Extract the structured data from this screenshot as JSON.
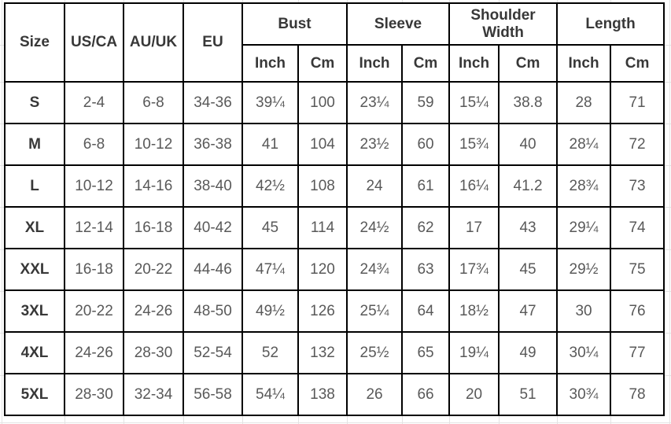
{
  "chart_data": {
    "type": "table",
    "title": "",
    "header": {
      "simple": [
        "Size",
        "US/CA",
        "AU/UK",
        "EU"
      ],
      "groups": [
        "Bust",
        "Sleeve",
        "Shoulder Width",
        "Length"
      ],
      "sub": [
        "Inch",
        "Cm",
        "Inch",
        "Cm",
        "Inch",
        "Cm",
        "Inch",
        "Cm"
      ]
    },
    "columns": [
      "Size",
      "US/CA",
      "AU/UK",
      "EU",
      "Bust Inch",
      "Bust Cm",
      "Sleeve Inch",
      "Sleeve Cm",
      "Shoulder Width Inch",
      "Shoulder Width Cm",
      "Length Inch",
      "Length Cm"
    ],
    "rows": [
      [
        "S",
        "2-4",
        "6-8",
        "34-36",
        "39¼",
        "100",
        "23¼",
        "59",
        "15¼",
        "38.8",
        "28",
        "71"
      ],
      [
        "M",
        "6-8",
        "10-12",
        "36-38",
        "41",
        "104",
        "23½",
        "60",
        "15¾",
        "40",
        "28¼",
        "72"
      ],
      [
        "L",
        "10-12",
        "14-16",
        "38-40",
        "42½",
        "108",
        "24",
        "61",
        "16¼",
        "41.2",
        "28¾",
        "73"
      ],
      [
        "XL",
        "12-14",
        "16-18",
        "40-42",
        "45",
        "114",
        "24½",
        "62",
        "17",
        "43",
        "29¼",
        "74"
      ],
      [
        "XXL",
        "16-18",
        "20-22",
        "44-46",
        "47¼",
        "120",
        "24¾",
        "63",
        "17¾",
        "45",
        "29½",
        "75"
      ],
      [
        "3XL",
        "20-22",
        "24-26",
        "48-50",
        "49½",
        "126",
        "25¼",
        "64",
        "18½",
        "47",
        "30",
        "76"
      ],
      [
        "4XL",
        "24-26",
        "28-30",
        "52-54",
        "52",
        "132",
        "25½",
        "65",
        "19¼",
        "49",
        "30¼",
        "77"
      ],
      [
        "5XL",
        "28-30",
        "32-34",
        "56-58",
        "54¼",
        "138",
        "26",
        "66",
        "20",
        "51",
        "30¾",
        "78"
      ]
    ],
    "colors": {
      "border": "#000000",
      "header_text": "#383838",
      "data_text": "#595959",
      "margin_grid": "#e3e3e3",
      "background": "#ffffff"
    }
  }
}
